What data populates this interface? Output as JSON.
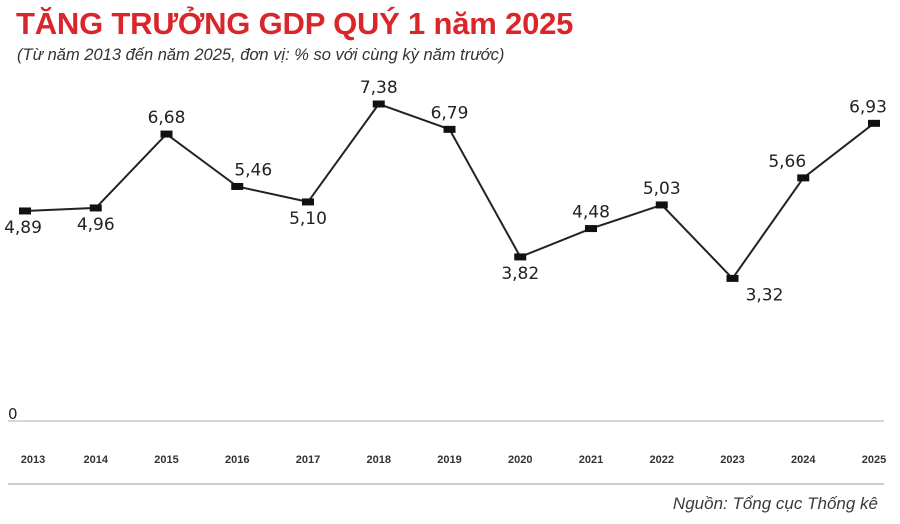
{
  "chart_data": {
    "type": "line",
    "title": "TĂNG TRƯỞNG GDP QUÝ 1 năm 2025",
    "subtitle": "(Từ năm 2013 đến năm 2025, đơn vị: % so với cùng kỳ năm trước)",
    "categories": [
      "2013",
      "2014",
      "2015",
      "2016",
      "2017",
      "2018",
      "2019",
      "2020",
      "2021",
      "2022",
      "2023",
      "2024",
      "2025"
    ],
    "series": [
      {
        "values": [
          4.89,
          4.96,
          6.68,
          5.46,
          5.1,
          7.38,
          6.79,
          3.82,
          4.48,
          5.03,
          3.32,
          5.66,
          6.93
        ],
        "labels": [
          "4,89",
          "4,96",
          "6,68",
          "5,46",
          "5,10",
          "7,38",
          "6,79",
          "3,82",
          "4,48",
          "5,03",
          "3,32",
          "5,66",
          "6,93"
        ]
      }
    ],
    "y_tick_labels": [
      "0"
    ],
    "ylim": [
      0,
      7.38
    ],
    "grid": false,
    "line_color": "#222222",
    "highlight_color": "#d9262b",
    "axis_color": "#cccccc"
  },
  "source": "Nguồn: Tổng cục Thống kê"
}
